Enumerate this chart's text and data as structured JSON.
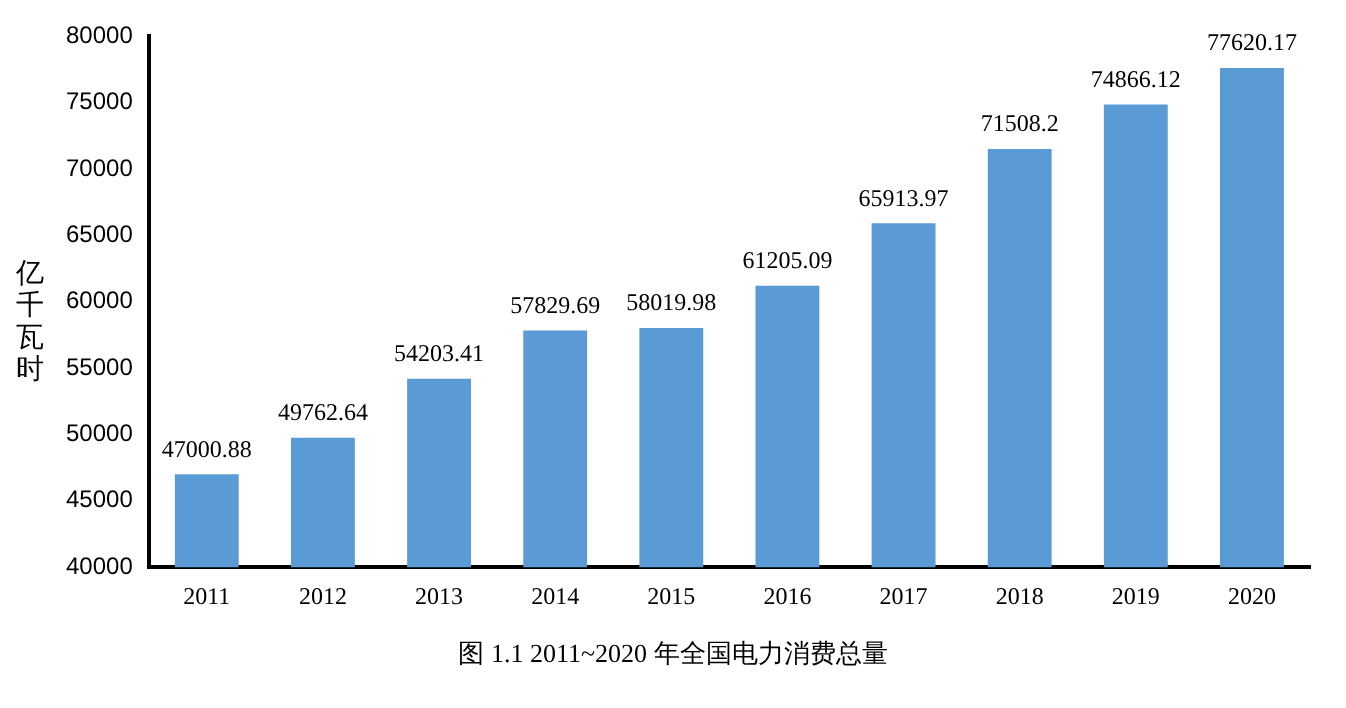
{
  "chart_data": {
    "type": "bar",
    "ylabel": "亿千瓦时",
    "categories": [
      "2011",
      "2012",
      "2013",
      "2014",
      "2015",
      "2016",
      "2017",
      "2018",
      "2019",
      "2020"
    ],
    "values": [
      47000.88,
      49762.64,
      54203.41,
      57829.69,
      58019.98,
      61205.09,
      65913.97,
      71508.2,
      74866.12,
      77620.17
    ],
    "value_labels": [
      "47000.88",
      "49762.64",
      "54203.41",
      "57829.69",
      "58019.98",
      "61205.09",
      "65913.97",
      "71508.2",
      "74866.12",
      "77620.17"
    ],
    "color": "#5b9bd5",
    "ylim": [
      40000,
      80000
    ],
    "yticks": [
      40000,
      45000,
      50000,
      55000,
      60000,
      65000,
      70000,
      75000,
      80000
    ],
    "grid": false,
    "legend": false,
    "annotations": [
      "图 1.1 2011~2020 年全国电力消费总量"
    ]
  }
}
